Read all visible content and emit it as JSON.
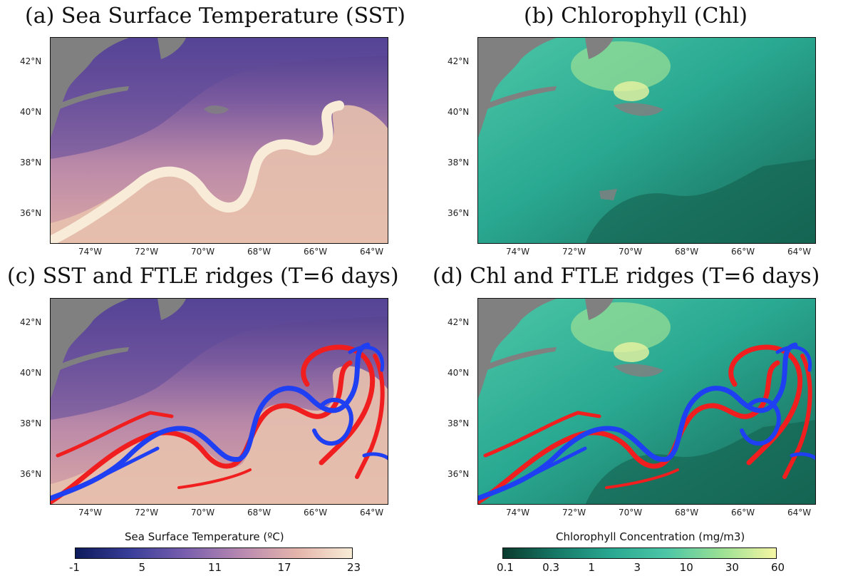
{
  "panels": [
    {
      "title": "(a) Sea Surface Temperature (SST)",
      "kind": "sst",
      "ridges": false
    },
    {
      "title": "(b) Chlorophyll (Chl)",
      "kind": "chl",
      "ridges": false
    },
    {
      "title": "(c) SST and FTLE ridges (T=6 days)",
      "kind": "sst",
      "ridges": true
    },
    {
      "title": "(d) Chl and FTLE ridges (T=6 days)",
      "kind": "chl",
      "ridges": true
    }
  ],
  "lat_ticks": [
    "42°N",
    "40°N",
    "38°N",
    "36°N"
  ],
  "lon_ticks": [
    "74°W",
    "72°W",
    "70°W",
    "68°W",
    "66°W",
    "64°W"
  ],
  "colorbars": {
    "sst": {
      "label": "Sea Surface Temperature (ºC)",
      "ticks": [
        "-1",
        "5",
        "11",
        "17",
        "23"
      ],
      "colors": [
        "#0d1a5c",
        "#3a3f9a",
        "#7a5fae",
        "#b889b0",
        "#e4b4ab",
        "#f8ecd6"
      ]
    },
    "chl": {
      "label": "Chlorophyll Concentration (mg/m3)",
      "ticks": [
        "0.1",
        "0.3",
        "1",
        "3",
        "10",
        "30",
        "60"
      ],
      "colors": [
        "#0a3b2e",
        "#167a68",
        "#2aa992",
        "#4cc6a6",
        "#9be094",
        "#f5f6a4"
      ]
    },
    "land_color": "#808080",
    "ridge_colors": {
      "attracting": "#1f3ff2",
      "repelling": "#f01e1e"
    }
  }
}
